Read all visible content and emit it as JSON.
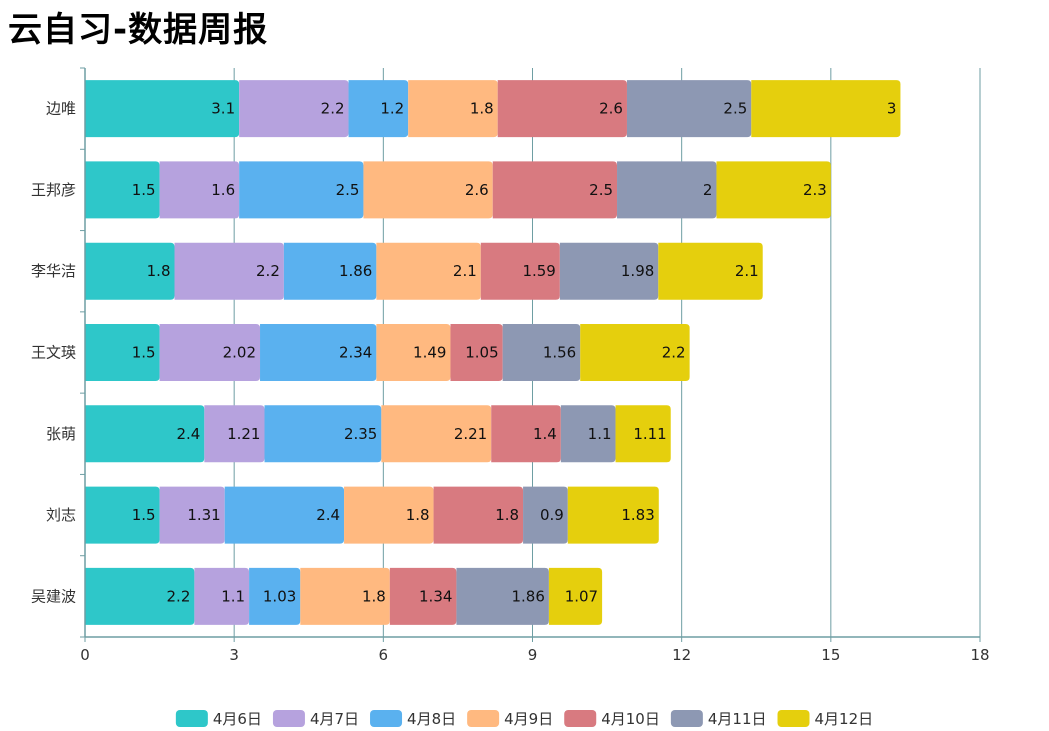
{
  "page": {
    "title": "云自习-数据周报"
  },
  "colors": {
    "axis": "#6e9ea3",
    "grid": "#6e9ea3",
    "series": [
      "#2ec7c9",
      "#b6a2de",
      "#5ab1ef",
      "#ffb980",
      "#d87a80",
      "#8d98b3",
      "#e5cf0d"
    ]
  },
  "chart_data": {
    "type": "bar",
    "orientation": "horizontal",
    "stacked": true,
    "title": "云自习-数据周报",
    "categories": [
      "吴建波",
      "刘志",
      "张萌",
      "王文瑛",
      "李华洁",
      "王邦彦",
      "边唯"
    ],
    "xlim": [
      0,
      18
    ],
    "xticks": [
      "0",
      "3",
      "6",
      "9",
      "12",
      "15",
      "18"
    ],
    "grid": "vertical",
    "legend_position": "bottom",
    "series": [
      {
        "name": "4月6日",
        "values": [
          2.2,
          1.5,
          2.4,
          1.5,
          1.8,
          1.5,
          3.1
        ]
      },
      {
        "name": "4月7日",
        "values": [
          1.1,
          1.31,
          1.21,
          2.02,
          2.2,
          1.6,
          2.2
        ]
      },
      {
        "name": "4月8日",
        "values": [
          1.03,
          2.4,
          2.35,
          2.34,
          1.86,
          2.5,
          1.2
        ]
      },
      {
        "name": "4月9日",
        "values": [
          1.8,
          1.8,
          2.21,
          1.49,
          2.1,
          2.6,
          1.8
        ]
      },
      {
        "name": "4月10日",
        "values": [
          1.34,
          1.8,
          1.4,
          1.05,
          1.59,
          2.5,
          2.6
        ]
      },
      {
        "name": "4月11日",
        "values": [
          1.86,
          0.9,
          1.1,
          1.56,
          1.98,
          2,
          2.5
        ]
      },
      {
        "name": "4月12日",
        "values": [
          1.07,
          1.83,
          1.11,
          2.2,
          2.1,
          2.3,
          3
        ]
      }
    ]
  }
}
